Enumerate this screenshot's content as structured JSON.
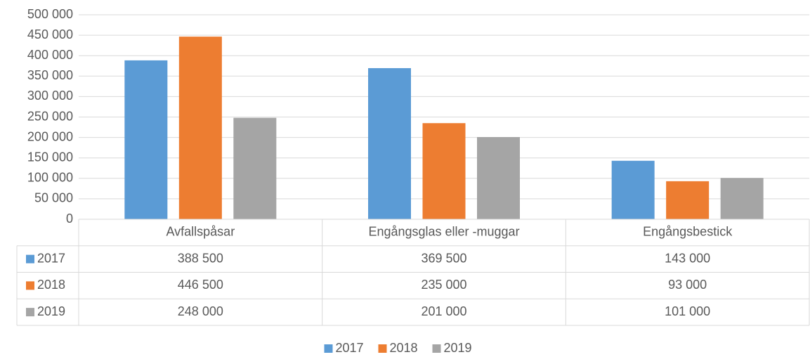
{
  "chart_data": {
    "type": "bar",
    "categories": [
      "Avfallspåsar",
      "Engångsglas eller -muggar",
      "Engångsbestick"
    ],
    "series": [
      {
        "name": "2017",
        "color": "#5b9bd5",
        "values": [
          388500,
          369500,
          143000
        ],
        "value_labels": [
          "388 500",
          "369 500",
          "143 000"
        ]
      },
      {
        "name": "2018",
        "color": "#ed7d31",
        "values": [
          446500,
          235000,
          93000
        ],
        "value_labels": [
          "446 500",
          "235 000",
          "93 000"
        ]
      },
      {
        "name": "2019",
        "color": "#a5a5a5",
        "values": [
          248000,
          201000,
          101000
        ],
        "value_labels": [
          "248 000",
          "201 000",
          "101 000"
        ]
      }
    ],
    "ylim": [
      0,
      500000
    ],
    "yticks": [
      0,
      {
        "value": 50000,
        "label": "50 000"
      },
      {
        "value": 100000,
        "label": "100 000"
      },
      {
        "value": 150000,
        "label": "150 000"
      },
      {
        "value": 200000,
        "label": "200 000"
      },
      {
        "value": 250000,
        "label": "250 000"
      },
      {
        "value": 300000,
        "label": "300 000"
      },
      {
        "value": 350000,
        "label": "350 000"
      },
      {
        "value": 400000,
        "label": "400 000"
      },
      {
        "value": 450000,
        "label": "450 000"
      },
      {
        "value": 500000,
        "label": "500 000"
      }
    ],
    "grid": true,
    "legend": "bottom",
    "data_table": true
  }
}
